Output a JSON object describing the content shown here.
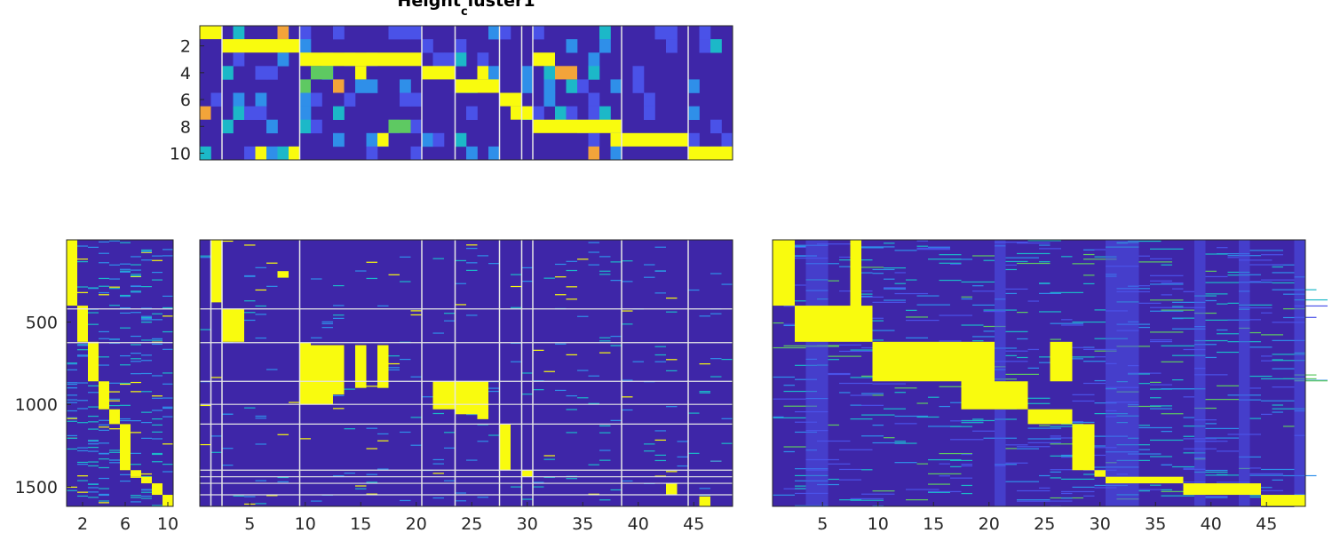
{
  "title": "Height",
  "title_sub": "c",
  "title_tail": "luster1",
  "colors": {
    "base": "#3e26a8",
    "blue": "#4a52e8",
    "lightblue": "#2f8fe9",
    "cyan": "#1cb8c8",
    "green": "#5ec962",
    "orange": "#f3a43a",
    "yellow": "#f9fb0e",
    "separator": "#e6e6e6",
    "axis": "#262626"
  },
  "chart_data": [
    {
      "id": "top",
      "type": "heatmap",
      "rows": 10,
      "cols": 48,
      "xlim": [
        0.5,
        48.5
      ],
      "ylim": [
        0.5,
        10.5
      ],
      "yticks": [
        2,
        4,
        6,
        8,
        10
      ],
      "xticks": [],
      "col_separators": [
        2.5,
        9.5,
        20.5,
        23.5,
        27.5,
        29.5,
        30.5,
        38.5,
        44.5
      ],
      "blocks": [
        {
          "row": 1,
          "c0": 1,
          "c1": 2,
          "v": 1
        },
        {
          "row": 1,
          "c0": 8,
          "c1": 8,
          "v": 0.8
        },
        {
          "row": 2,
          "c0": 3,
          "c1": 9,
          "v": 1
        },
        {
          "row": 3,
          "c0": 10,
          "c1": 20,
          "v": 1
        },
        {
          "row": 3,
          "c0": 31,
          "c1": 32,
          "v": 1
        },
        {
          "row": 4,
          "c0": 11,
          "c1": 12,
          "v": 0.6
        },
        {
          "row": 4,
          "c0": 15,
          "c1": 15,
          "v": 1
        },
        {
          "row": 4,
          "c0": 21,
          "c1": 23,
          "v": 1
        },
        {
          "row": 4,
          "c0": 26,
          "c1": 26,
          "v": 1
        },
        {
          "row": 4,
          "c0": 33,
          "c1": 34,
          "v": 0.8
        },
        {
          "row": 5,
          "c0": 24,
          "c1": 27,
          "v": 1
        },
        {
          "row": 5,
          "c0": 10,
          "c1": 10,
          "v": 0.6
        },
        {
          "row": 5,
          "c0": 13,
          "c1": 13,
          "v": 0.8
        },
        {
          "row": 6,
          "c0": 28,
          "c1": 29,
          "v": 1
        },
        {
          "row": 7,
          "c0": 29,
          "c1": 30,
          "v": 1
        },
        {
          "row": 7,
          "c0": 1,
          "c1": 1,
          "v": 0.8
        },
        {
          "row": 8,
          "c0": 31,
          "c1": 38,
          "v": 1
        },
        {
          "row": 8,
          "c0": 18,
          "c1": 19,
          "v": 0.7
        },
        {
          "row": 9,
          "c0": 38,
          "c1": 44,
          "v": 1
        },
        {
          "row": 9,
          "c0": 17,
          "c1": 17,
          "v": 1
        },
        {
          "row": 10,
          "c0": 45,
          "c1": 48,
          "v": 1
        },
        {
          "row": 10,
          "c0": 36,
          "c1": 36,
          "v": 0.8
        },
        {
          "row": 10,
          "c0": 6,
          "c1": 6,
          "v": 1
        },
        {
          "row": 10,
          "c0": 9,
          "c1": 9,
          "v": 1
        }
      ]
    },
    {
      "id": "bottom-left",
      "type": "heatmap",
      "rows": 1620,
      "cols": 10,
      "xlim": [
        0.5,
        10.5
      ],
      "ylim": [
        0,
        1620
      ],
      "xticks": [
        2,
        6,
        10
      ],
      "yticks": [
        500,
        1000,
        1500
      ],
      "row_separators": [
        420,
        625
      ],
      "diagonal_blocks": [
        {
          "col": 1,
          "r0": 0,
          "r1": 400
        },
        {
          "col": 2,
          "r0": 400,
          "r1": 620
        },
        {
          "col": 3,
          "r0": 620,
          "r1": 860
        },
        {
          "col": 4,
          "r0": 860,
          "r1": 1030
        },
        {
          "col": 5,
          "r0": 1030,
          "r1": 1120
        },
        {
          "col": 6,
          "r0": 1120,
          "r1": 1400
        },
        {
          "col": 7,
          "r0": 1400,
          "r1": 1440
        },
        {
          "col": 8,
          "r0": 1440,
          "r1": 1480
        },
        {
          "col": 9,
          "r0": 1480,
          "r1": 1550
        },
        {
          "col": 10,
          "r0": 1550,
          "r1": 1620
        }
      ]
    },
    {
      "id": "bottom-middle",
      "type": "heatmap",
      "rows": 1620,
      "cols": 48,
      "xlim": [
        0.5,
        48.5
      ],
      "ylim": [
        0,
        1620
      ],
      "xticks": [
        5,
        10,
        15,
        20,
        25,
        30,
        35,
        40,
        45
      ],
      "yticks": [],
      "col_separators": [
        1.5,
        2.5,
        9.5,
        20.5,
        23.5,
        27.5,
        29.5,
        30.5,
        38.5,
        44.5
      ],
      "row_separators": [
        420,
        625,
        860,
        1000,
        1120,
        1400,
        1440,
        1480,
        1550
      ],
      "blocks": [
        {
          "c0": 2,
          "c1": 2,
          "r0": 0,
          "r1": 380
        },
        {
          "c0": 3,
          "c1": 4,
          "r0": 420,
          "r1": 620
        },
        {
          "c0": 8,
          "c1": 8,
          "r0": 190,
          "r1": 230
        },
        {
          "c0": 10,
          "c1": 10,
          "r0": 625,
          "r1": 1000
        },
        {
          "c0": 11,
          "c1": 12,
          "r0": 640,
          "r1": 1000
        },
        {
          "c0": 13,
          "c1": 13,
          "r0": 640,
          "r1": 940
        },
        {
          "c0": 15,
          "c1": 15,
          "r0": 640,
          "r1": 900
        },
        {
          "c0": 17,
          "c1": 17,
          "r0": 640,
          "r1": 900
        },
        {
          "c0": 22,
          "c1": 23,
          "r0": 860,
          "r1": 1030
        },
        {
          "c0": 24,
          "c1": 25,
          "r0": 860,
          "r1": 1060
        },
        {
          "c0": 26,
          "c1": 26,
          "r0": 860,
          "r1": 1090
        },
        {
          "c0": 28,
          "c1": 28,
          "r0": 1120,
          "r1": 1400
        },
        {
          "c0": 30,
          "c1": 30,
          "r0": 1400,
          "r1": 1440
        },
        {
          "c0": 43,
          "c1": 43,
          "r0": 1480,
          "r1": 1550
        },
        {
          "c0": 46,
          "c1": 46,
          "r0": 1560,
          "r1": 1620
        }
      ]
    },
    {
      "id": "bottom-right",
      "type": "heatmap",
      "rows": 1620,
      "cols": 48,
      "xlim": [
        0.5,
        48.5
      ],
      "ylim": [
        0,
        1620
      ],
      "xticks": [
        5,
        10,
        15,
        20,
        25,
        30,
        35,
        40,
        45
      ],
      "yticks": [],
      "blocks": [
        {
          "c0": 1,
          "c1": 2,
          "r0": 0,
          "r1": 400
        },
        {
          "c0": 8,
          "c1": 8,
          "r0": 0,
          "r1": 440
        },
        {
          "c0": 3,
          "c1": 9,
          "r0": 400,
          "r1": 620
        },
        {
          "c0": 10,
          "c1": 17,
          "r0": 620,
          "r1": 860
        },
        {
          "c0": 18,
          "c1": 20,
          "r0": 620,
          "r1": 1030
        },
        {
          "c0": 21,
          "c1": 23,
          "r0": 860,
          "r1": 1030
        },
        {
          "c0": 24,
          "c1": 27,
          "r0": 1030,
          "r1": 1120
        },
        {
          "c0": 26,
          "c1": 27,
          "r0": 620,
          "r1": 860
        },
        {
          "c0": 28,
          "c1": 29,
          "r0": 1120,
          "r1": 1400
        },
        {
          "c0": 30,
          "c1": 30,
          "r0": 1400,
          "r1": 1440
        },
        {
          "c0": 31,
          "c1": 37,
          "r0": 1440,
          "r1": 1480
        },
        {
          "c0": 38,
          "c1": 44,
          "r0": 1480,
          "r1": 1550
        },
        {
          "c0": 45,
          "c1": 48,
          "r0": 1550,
          "r1": 1620
        }
      ],
      "light_columns": [
        4,
        5,
        21,
        31,
        32,
        33,
        39,
        43,
        48
      ]
    }
  ]
}
